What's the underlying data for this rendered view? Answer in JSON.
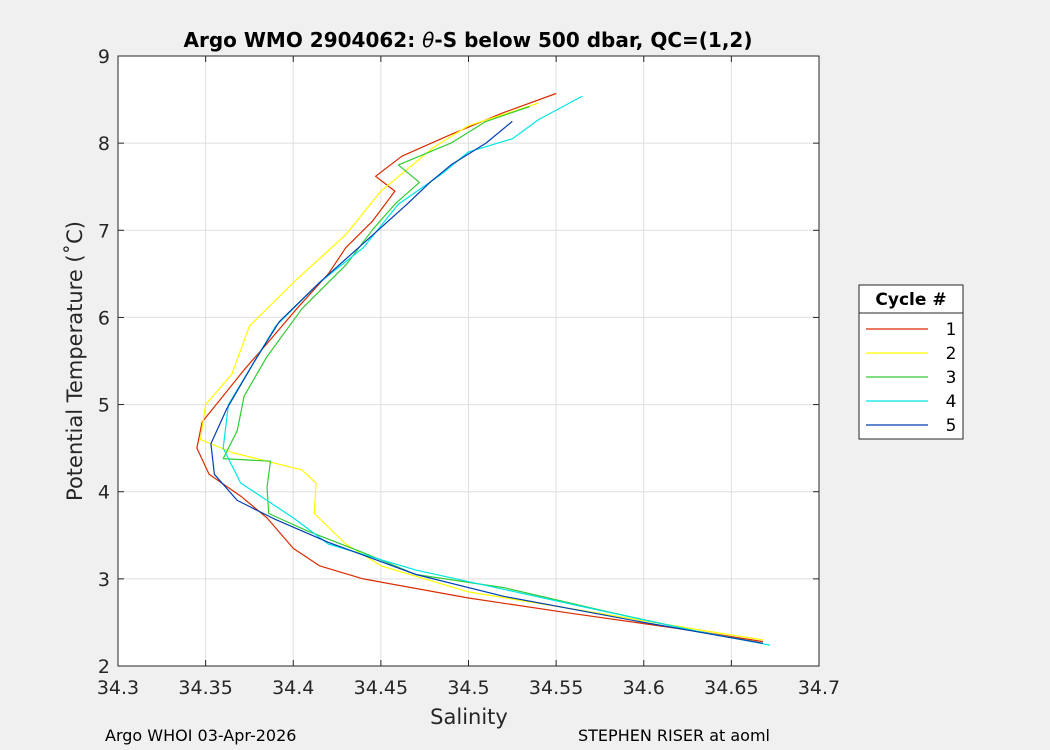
{
  "chart_data": {
    "type": "line",
    "title_prefix": "Argo WMO 2904062: ",
    "title_theta": "θ",
    "title_suffix": "-S below 500 dbar,  QC=(1,2)",
    "xlabel": "Salinity",
    "ylabel": "Potential Temperature (˚C)",
    "xlim": [
      34.3,
      34.7
    ],
    "ylim": [
      2,
      9
    ],
    "xticks": [
      "34.3",
      "34.35",
      "34.4",
      "34.45",
      "34.5",
      "34.55",
      "34.6",
      "34.65",
      "34.7"
    ],
    "yticks": [
      "2",
      "3",
      "4",
      "5",
      "6",
      "7",
      "8",
      "9"
    ],
    "grid": true,
    "legend": {
      "title": "Cycle #",
      "placement": "outside-right"
    },
    "series": [
      {
        "name": "1",
        "color": "#d92b00",
        "points": [
          [
            34.668,
            2.28
          ],
          [
            34.63,
            2.4
          ],
          [
            34.56,
            2.6
          ],
          [
            34.5,
            2.78
          ],
          [
            34.44,
            3.0
          ],
          [
            34.415,
            3.15
          ],
          [
            34.4,
            3.35
          ],
          [
            34.385,
            3.7
          ],
          [
            34.37,
            3.95
          ],
          [
            34.352,
            4.2
          ],
          [
            34.345,
            4.5
          ],
          [
            34.348,
            4.8
          ],
          [
            34.36,
            5.1
          ],
          [
            34.372,
            5.4
          ],
          [
            34.385,
            5.7
          ],
          [
            34.402,
            6.1
          ],
          [
            34.42,
            6.5
          ],
          [
            34.43,
            6.8
          ],
          [
            34.445,
            7.1
          ],
          [
            34.458,
            7.45
          ],
          [
            34.447,
            7.62
          ],
          [
            34.462,
            7.85
          ],
          [
            34.49,
            8.1
          ],
          [
            34.52,
            8.35
          ],
          [
            34.55,
            8.57
          ]
        ]
      },
      {
        "name": "2",
        "color": "#ffff00",
        "points": [
          [
            34.668,
            2.3
          ],
          [
            34.63,
            2.42
          ],
          [
            34.57,
            2.62
          ],
          [
            34.5,
            2.85
          ],
          [
            34.45,
            3.15
          ],
          [
            34.43,
            3.4
          ],
          [
            34.412,
            3.75
          ],
          [
            34.413,
            4.1
          ],
          [
            34.405,
            4.25
          ],
          [
            34.365,
            4.45
          ],
          [
            34.347,
            4.6
          ],
          [
            34.35,
            5.0
          ],
          [
            34.365,
            5.35
          ],
          [
            34.375,
            5.9
          ],
          [
            34.4,
            6.4
          ],
          [
            34.43,
            6.95
          ],
          [
            34.45,
            7.45
          ],
          [
            34.465,
            7.7
          ],
          [
            34.48,
            7.95
          ],
          [
            34.5,
            8.2
          ],
          [
            34.54,
            8.46
          ]
        ]
      },
      {
        "name": "3",
        "color": "#33cc33",
        "points": [
          [
            34.668,
            2.26
          ],
          [
            34.63,
            2.4
          ],
          [
            34.58,
            2.62
          ],
          [
            34.52,
            2.9
          ],
          [
            34.47,
            3.05
          ],
          [
            34.44,
            3.3
          ],
          [
            34.408,
            3.55
          ],
          [
            34.386,
            3.75
          ],
          [
            34.385,
            4.05
          ],
          [
            34.387,
            4.35
          ],
          [
            34.36,
            4.38
          ],
          [
            34.368,
            4.7
          ],
          [
            34.372,
            5.1
          ],
          [
            34.385,
            5.55
          ],
          [
            34.405,
            6.1
          ],
          [
            34.43,
            6.6
          ],
          [
            34.445,
            7.0
          ],
          [
            34.458,
            7.3
          ],
          [
            34.472,
            7.55
          ],
          [
            34.46,
            7.75
          ],
          [
            34.49,
            8.0
          ],
          [
            34.51,
            8.25
          ],
          [
            34.535,
            8.42
          ]
        ]
      },
      {
        "name": "4",
        "color": "#00e5e5",
        "points": [
          [
            34.672,
            2.24
          ],
          [
            34.63,
            2.4
          ],
          [
            34.57,
            2.66
          ],
          [
            34.52,
            2.88
          ],
          [
            34.47,
            3.1
          ],
          [
            34.42,
            3.4
          ],
          [
            34.4,
            3.7
          ],
          [
            34.37,
            4.1
          ],
          [
            34.36,
            4.5
          ],
          [
            34.363,
            5.0
          ],
          [
            34.375,
            5.4
          ],
          [
            34.39,
            5.9
          ],
          [
            34.415,
            6.4
          ],
          [
            34.44,
            6.8
          ],
          [
            34.46,
            7.3
          ],
          [
            34.485,
            7.65
          ],
          [
            34.5,
            7.9
          ],
          [
            34.525,
            8.05
          ],
          [
            34.54,
            8.27
          ],
          [
            34.565,
            8.54
          ]
        ]
      },
      {
        "name": "5",
        "color": "#003fb3",
        "points": [
          [
            34.668,
            2.26
          ],
          [
            34.6,
            2.5
          ],
          [
            34.52,
            2.8
          ],
          [
            34.47,
            3.05
          ],
          [
            34.42,
            3.42
          ],
          [
            34.39,
            3.68
          ],
          [
            34.368,
            3.9
          ],
          [
            34.355,
            4.2
          ],
          [
            34.353,
            4.55
          ],
          [
            34.362,
            4.95
          ],
          [
            34.378,
            5.5
          ],
          [
            34.392,
            5.95
          ],
          [
            34.415,
            6.4
          ],
          [
            34.44,
            6.85
          ],
          [
            34.465,
            7.3
          ],
          [
            34.478,
            7.55
          ],
          [
            34.49,
            7.75
          ],
          [
            34.51,
            8.0
          ],
          [
            34.525,
            8.25
          ]
        ]
      }
    ],
    "footer_left": "Argo WHOI 03-Apr-2026",
    "footer_right": "STEPHEN RISER at aoml"
  }
}
